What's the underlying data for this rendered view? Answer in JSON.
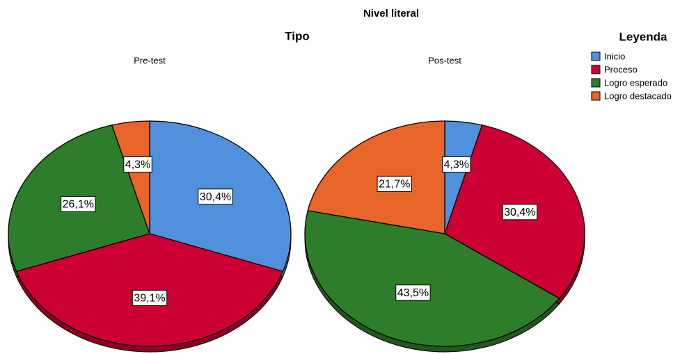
{
  "title": "Nivel literal",
  "subtitle": "Tipo",
  "legend": {
    "title": "Leyenda",
    "categories": [
      "Inicio",
      "Proceso",
      "Logro esperado",
      "Logro destacado"
    ],
    "colors": [
      "#5190dc",
      "#cc0033",
      "#2e7d2b",
      "#e8652a"
    ]
  },
  "chart_data": [
    {
      "type": "pie",
      "title": "Pre-test",
      "values": [
        30.4,
        39.1,
        26.1,
        4.3
      ],
      "value_labels": [
        "30,4%",
        "39,1%",
        "26,1%",
        "4,3%"
      ]
    },
    {
      "type": "pie",
      "title": "Pos-test",
      "values": [
        4.3,
        30.4,
        43.5,
        21.7
      ],
      "value_labels": [
        "4,3%",
        "30,4%",
        "43,5%",
        "21,7%"
      ]
    }
  ]
}
